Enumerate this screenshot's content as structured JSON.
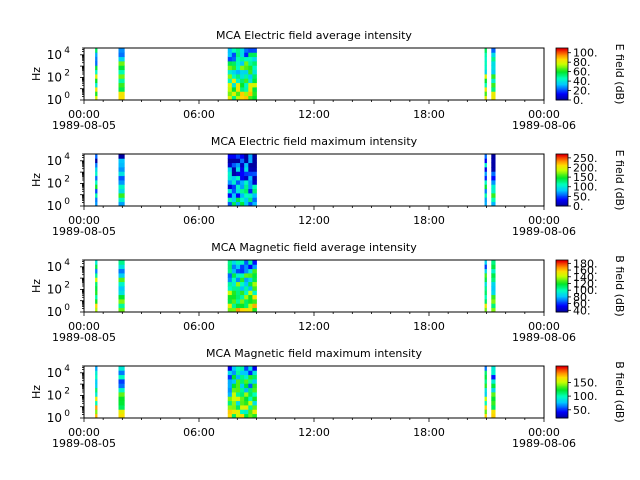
{
  "chart_data": [
    {
      "type": "heatmap",
      "title": "MCA  Electric field average intensity",
      "ylabel": "Hz",
      "y_scale": "log",
      "ylim": [
        1,
        40000
      ],
      "y_ticks": [
        {
          "value": 1,
          "base": "10",
          "exp": "0"
        },
        {
          "value": 100,
          "base": "10",
          "exp": "2"
        },
        {
          "value": 10000,
          "base": "10",
          "exp": "4"
        }
      ],
      "xlim": [
        0,
        24
      ],
      "x_ticks": [
        "00:00",
        "06:00",
        "12:00",
        "18:00",
        "00:00"
      ],
      "x_dates": [
        "1989-08-05",
        "1989-08-06"
      ],
      "colorbar": {
        "label": "E field (dB)",
        "range": [
          0,
          110
        ],
        "tick_labels": [
          "0.",
          "20.",
          "40.",
          "60.",
          "80.",
          "100."
        ],
        "tick_values": [
          0,
          20,
          40,
          60,
          80,
          100
        ]
      },
      "bands": [
        {
          "start": 0.58,
          "end": 0.68,
          "mean": 55
        },
        {
          "start": 1.8,
          "end": 2.1,
          "mean": 60
        },
        {
          "start": 7.5,
          "end": 9.0,
          "mean": 55
        },
        {
          "start": 20.9,
          "end": 21.0,
          "mean": 55
        },
        {
          "start": 21.25,
          "end": 21.45,
          "mean": 55
        }
      ]
    },
    {
      "type": "heatmap",
      "title": "MCA  Electric field maximum intensity",
      "ylabel": "Hz",
      "y_scale": "log",
      "ylim": [
        1,
        40000
      ],
      "y_ticks": [
        {
          "value": 1,
          "base": "10",
          "exp": "0"
        },
        {
          "value": 100,
          "base": "10",
          "exp": "2"
        },
        {
          "value": 10000,
          "base": "10",
          "exp": "4"
        }
      ],
      "xlim": [
        0,
        24
      ],
      "x_ticks": [
        "00:00",
        "06:00",
        "12:00",
        "18:00",
        "00:00"
      ],
      "x_dates": [
        "1989-08-05",
        "1989-08-06"
      ],
      "colorbar": {
        "label": "E field (dB)",
        "range": [
          0,
          270
        ],
        "tick_labels": [
          "0.",
          "50.",
          "100.",
          "150.",
          "200.",
          "250."
        ],
        "tick_values": [
          0,
          50,
          100,
          150,
          200,
          250
        ]
      },
      "bands": [
        {
          "start": 0.58,
          "end": 0.68,
          "mean": 80
        },
        {
          "start": 1.8,
          "end": 2.1,
          "mean": 80
        },
        {
          "start": 7.5,
          "end": 9.0,
          "mean": 60
        },
        {
          "start": 20.9,
          "end": 21.0,
          "mean": 80
        },
        {
          "start": 21.25,
          "end": 21.45,
          "mean": 80
        }
      ]
    },
    {
      "type": "heatmap",
      "title": "MCA  Magnetic field average intensity",
      "ylabel": "Hz",
      "y_scale": "log",
      "ylim": [
        1,
        40000
      ],
      "y_ticks": [
        {
          "value": 1,
          "base": "10",
          "exp": "0"
        },
        {
          "value": 100,
          "base": "10",
          "exp": "2"
        },
        {
          "value": 10000,
          "base": "10",
          "exp": "4"
        }
      ],
      "xlim": [
        0,
        24
      ],
      "x_ticks": [
        "00:00",
        "06:00",
        "12:00",
        "18:00",
        "00:00"
      ],
      "x_dates": [
        "1989-08-05",
        "1989-08-06"
      ],
      "colorbar": {
        "label": "B field (dB)",
        "range": [
          35,
          190
        ],
        "tick_labels": [
          "40.",
          "60.",
          "80.",
          "100.",
          "120.",
          "140.",
          "160.",
          "180."
        ],
        "tick_values": [
          40,
          60,
          80,
          100,
          120,
          140,
          160,
          180
        ]
      },
      "bands": [
        {
          "start": 0.58,
          "end": 0.68,
          "mean": 120
        },
        {
          "start": 1.8,
          "end": 2.1,
          "mean": 110
        },
        {
          "start": 7.5,
          "end": 9.0,
          "mean": 110
        },
        {
          "start": 20.9,
          "end": 21.0,
          "mean": 110
        },
        {
          "start": 21.25,
          "end": 21.45,
          "mean": 110
        }
      ]
    },
    {
      "type": "heatmap",
      "title": "MCA  Magnetic field maximum intensity",
      "ylabel": "Hz",
      "y_scale": "log",
      "ylim": [
        1,
        40000
      ],
      "y_ticks": [
        {
          "value": 1,
          "base": "10",
          "exp": "0"
        },
        {
          "value": 100,
          "base": "10",
          "exp": "2"
        },
        {
          "value": 10000,
          "base": "10",
          "exp": "4"
        }
      ],
      "xlim": [
        0,
        24
      ],
      "x_ticks": [
        "00:00",
        "06:00",
        "12:00",
        "18:00",
        "00:00"
      ],
      "x_dates": [
        "1989-08-05",
        "1989-08-06"
      ],
      "colorbar": {
        "label": "B field (dB)",
        "range": [
          20,
          210
        ],
        "tick_labels": [
          "50.",
          "100.",
          "150."
        ],
        "tick_values": [
          50,
          100,
          150
        ]
      },
      "bands": [
        {
          "start": 0.58,
          "end": 0.68,
          "mean": 120
        },
        {
          "start": 1.8,
          "end": 2.1,
          "mean": 110
        },
        {
          "start": 7.5,
          "end": 9.0,
          "mean": 110
        },
        {
          "start": 20.9,
          "end": 21.0,
          "mean": 110
        },
        {
          "start": 21.25,
          "end": 21.45,
          "mean": 110
        }
      ]
    }
  ]
}
